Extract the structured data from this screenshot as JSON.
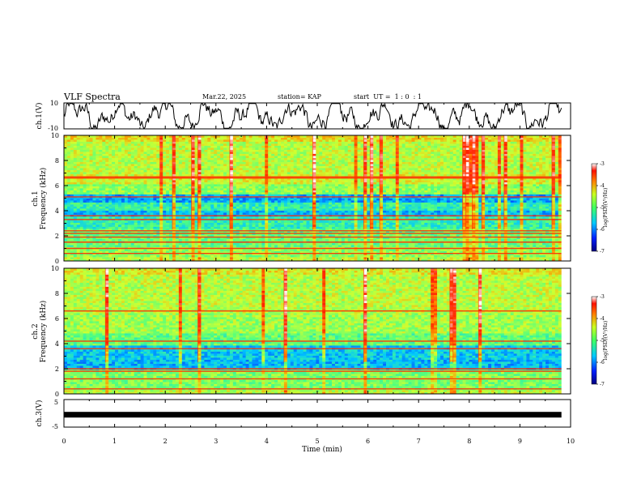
{
  "header": {
    "title": "VLF Spectra",
    "date": "Mar.22, 2025",
    "station": "station= KAP",
    "start": "start  UT =  1 : 0  : 1"
  },
  "colors": {
    "colormap": [
      "#000090",
      "#0030ff",
      "#00c8ff",
      "#50ff80",
      "#d0ff30",
      "#ff9000",
      "#ff2000",
      "#ffffff"
    ]
  },
  "chart_data": [
    {
      "type": "line",
      "panel": "ch1-waveform",
      "ylabel": "ch.1(V)",
      "ylim": [
        -10,
        10
      ],
      "yticks": [
        "10",
        "-10"
      ],
      "xlim": [
        0,
        10
      ],
      "x_range_data": [
        0,
        9.82
      ],
      "description_values": "noisy waveform oscillating roughly between -8 and +8 V"
    },
    {
      "type": "heatmap",
      "panel": "ch1-spectrogram",
      "ylabel": "ch.1",
      "ylabel2": "Frequency  (kHz)",
      "ylim": [
        0,
        10
      ],
      "yticks": [
        "0",
        "2",
        "4",
        "6",
        "8",
        "10"
      ],
      "xlim": [
        0,
        10
      ],
      "x_range_data": [
        0,
        9.82
      ],
      "bands": [
        {
          "f0": 0.0,
          "f1": 0.3,
          "level": 0.55
        },
        {
          "f0": 0.3,
          "f1": 1.2,
          "level": 0.5
        },
        {
          "f0": 1.2,
          "f1": 2.6,
          "level": 0.45
        },
        {
          "f0": 2.6,
          "f1": 3.5,
          "level": 0.38
        },
        {
          "f0": 3.5,
          "f1": 4.0,
          "level": 0.28
        },
        {
          "f0": 4.0,
          "f1": 4.6,
          "level": 0.38
        },
        {
          "f0": 4.6,
          "f1": 5.3,
          "level": 0.26
        },
        {
          "f0": 5.3,
          "f1": 6.2,
          "level": 0.5
        },
        {
          "f0": 6.2,
          "f1": 7.0,
          "level": 0.58
        },
        {
          "f0": 7.0,
          "f1": 9.5,
          "level": 0.55
        },
        {
          "f0": 9.5,
          "f1": 10.0,
          "level": 0.62
        }
      ],
      "lines_khz": [
        0.6,
        1.0,
        1.5,
        1.9,
        2.2,
        2.4,
        3.3,
        3.6,
        5.1,
        6.6,
        6.7
      ],
      "colorbar": {
        "label": "log(PSD)(V²/Hz)",
        "ticks": [
          "-3",
          "-4",
          "-5",
          "-6",
          "-7"
        ],
        "range": [
          -7,
          -3
        ]
      }
    },
    {
      "type": "heatmap",
      "panel": "ch2-spectrogram",
      "ylabel": "ch.2",
      "ylabel2": "Frequency  (kHz)",
      "ylim": [
        0,
        10
      ],
      "yticks": [
        "0",
        "2",
        "4",
        "6",
        "8",
        "10"
      ],
      "xlim": [
        0,
        10
      ],
      "x_range_data": [
        0,
        9.82
      ],
      "bands": [
        {
          "f0": 0.0,
          "f1": 0.4,
          "level": 0.55
        },
        {
          "f0": 0.4,
          "f1": 1.9,
          "level": 0.48
        },
        {
          "f0": 1.9,
          "f1": 2.8,
          "level": 0.28
        },
        {
          "f0": 2.8,
          "f1": 3.9,
          "level": 0.3
        },
        {
          "f0": 3.9,
          "f1": 4.8,
          "level": 0.45
        },
        {
          "f0": 4.8,
          "f1": 6.5,
          "level": 0.52
        },
        {
          "f0": 6.5,
          "f1": 9.5,
          "level": 0.55
        },
        {
          "f0": 9.5,
          "f1": 10.0,
          "level": 0.6
        }
      ],
      "lines_khz": [
        0.4,
        1.2,
        1.8,
        2.0,
        3.6,
        4.2,
        6.6
      ],
      "colorbar": {
        "label": "log(PSD)(V²/Hz)",
        "ticks": [
          "-3",
          "-4",
          "-5",
          "-6",
          "-7"
        ],
        "range": [
          -7,
          -3
        ]
      }
    },
    {
      "type": "line",
      "panel": "ch3-waveform",
      "ylabel": "ch.3(V)",
      "ylim": [
        -5,
        5
      ],
      "yticks": [
        "5",
        "-5"
      ],
      "xlim": [
        0,
        10
      ],
      "x_range_data": [
        0,
        9.82
      ],
      "values_level_v": -0.5
    }
  ],
  "xaxis": {
    "label": "Time  (min)",
    "ticks": [
      "0",
      "1",
      "2",
      "3",
      "4",
      "5",
      "6",
      "7",
      "8",
      "9",
      "10"
    ]
  }
}
